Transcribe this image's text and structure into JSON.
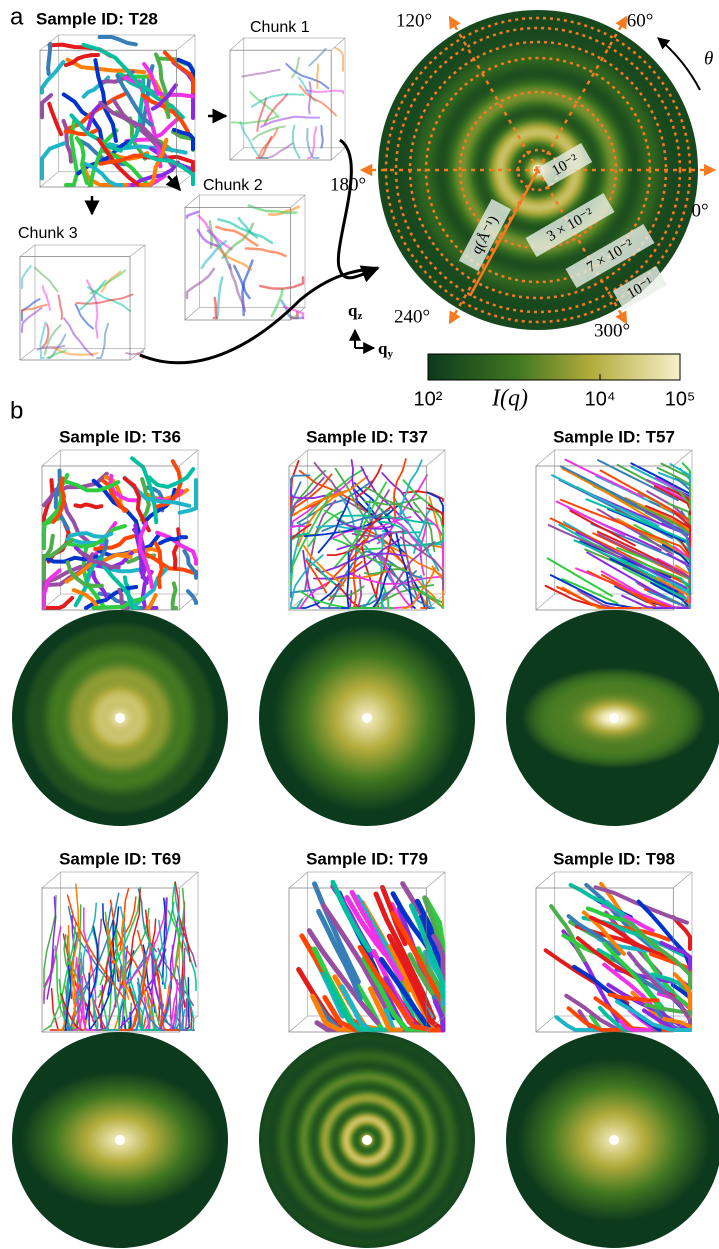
{
  "panel_a": {
    "label": "a",
    "sample_title": "Sample ID: T28",
    "chunks": [
      "Chunk 1",
      "Chunk 2",
      "Chunk 3"
    ],
    "angles": [
      "0°",
      "60°",
      "120°",
      "180°",
      "240°",
      "300°"
    ],
    "theta": "θ",
    "q_axis_label": "q(Å⁻¹)",
    "q_rings": [
      "10⁻²",
      "3 × 10⁻²",
      "7 × 10⁻²",
      "10⁻¹"
    ],
    "axes": [
      {
        "q": "q",
        "sub": "z"
      },
      {
        "q": "q",
        "sub": "y"
      }
    ],
    "colorbar": {
      "label": "I(q)",
      "ticks": [
        "10²",
        "10⁴",
        "10⁵"
      ]
    }
  },
  "panel_b": {
    "label": "b",
    "samples": [
      "Sample ID: T36",
      "Sample ID: T37",
      "Sample ID: T57",
      "Sample ID: T69",
      "Sample ID: T79",
      "Sample ID: T98"
    ]
  }
}
